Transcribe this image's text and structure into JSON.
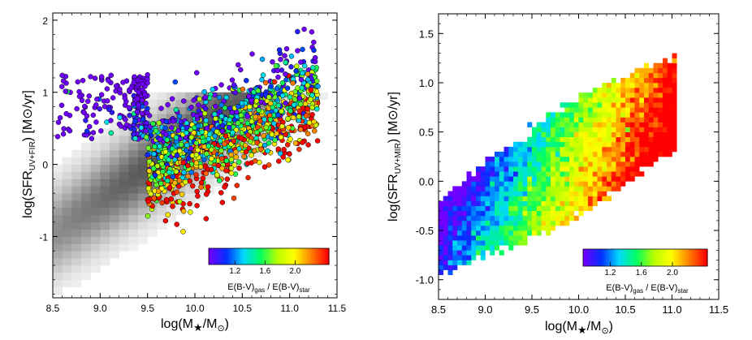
{
  "chart_data": [
    {
      "type": "scatter",
      "title": "",
      "xlabel": "log(M★/M⊙)",
      "ylabel": "log(SFR UV+FIR) [M⊙/yr]",
      "ylabel_main": "log(SFR",
      "ylabel_sub": "UV+FIR",
      "ylabel_rest": ") [M⊙/yr]",
      "xlim": [
        8.5,
        11.5
      ],
      "ylim": [
        -1.85,
        2.1
      ],
      "xticks": [
        8.5,
        9.0,
        9.5,
        10.0,
        10.5,
        11.0,
        11.5
      ],
      "xtick_labels": [
        "8.5",
        "9.0",
        "9.5",
        "10.0",
        "10.5",
        "11.0",
        "11.5"
      ],
      "yticks": [
        -1,
        0,
        1,
        2
      ],
      "ytick_labels": [
        "-1",
        "0",
        "1",
        "2"
      ],
      "background": "grayscale 2D density of the parent galaxy sample along the main sequence",
      "points": "~1500 galaxies colored by E(B-V)gas/E(B-V)star, concentrated at logM 9.5-11.2, logSFR 0-1.5, trend SFR rising with mass",
      "colorbar": {
        "range": [
          0.85,
          2.45
        ],
        "ticks": [
          1.2,
          1.6,
          2.0
        ],
        "tick_labels": [
          "1.2",
          "1.6",
          "2.0"
        ],
        "label_a": "E(B-V)",
        "label_a_sub": "gas",
        "label_sep": " / E(B-V)",
        "label_b_sub": "star",
        "location": "lower-right"
      }
    },
    {
      "type": "heatmap",
      "title": "",
      "xlabel": "log(M★/M⊙)",
      "ylabel": "log(SFR UV+MIR) [M⊙/yr]",
      "ylabel_main": "log(SFR",
      "ylabel_sub": "UV+MIR",
      "ylabel_rest": ") [M⊙/yr]",
      "xlim": [
        8.5,
        11.5
      ],
      "ylim": [
        -1.2,
        1.7
      ],
      "xticks": [
        8.5,
        9.0,
        9.5,
        10.0,
        10.5,
        11.0,
        11.5
      ],
      "xtick_labels": [
        "8.5",
        "9.0",
        "9.5",
        "10.0",
        "10.5",
        "11.0",
        "11.5"
      ],
      "yticks": [
        -1.0,
        -0.5,
        0.0,
        0.5,
        1.0,
        1.5
      ],
      "ytick_labels": [
        "-1.0",
        "-0.5",
        "0.0",
        "0.5",
        "1.0",
        "1.5"
      ],
      "cells": "binned median E(B-V)gas/E(B-V)star, low (~1.0) at low mass/low SFR rising to ~2.2 at high mass",
      "colorbar": {
        "range": [
          0.85,
          2.45
        ],
        "ticks": [
          1.2,
          1.6,
          2.0
        ],
        "tick_labels": [
          "1.2",
          "1.6",
          "2.0"
        ],
        "label_a": "E(B-V)",
        "label_a_sub": "gas",
        "label_sep": " / E(B-V)",
        "label_b_sub": "star",
        "location": "lower-right"
      }
    }
  ],
  "colormap": [
    "#7000ff",
    "#0030ff",
    "#00d8ff",
    "#00ff60",
    "#b8ff00",
    "#ffff00",
    "#ff8000",
    "#ff0000"
  ]
}
